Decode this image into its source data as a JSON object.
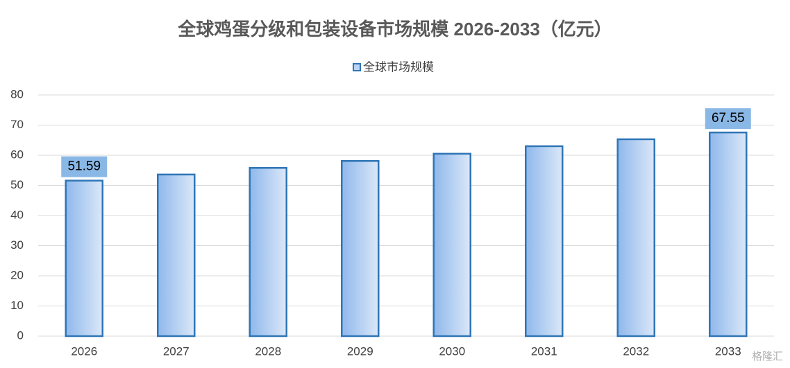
{
  "chart_data": {
    "type": "bar",
    "title": "全球鸡蛋分级和包装设备市场规模 2026-2033（亿元）",
    "categories": [
      "2026",
      "2027",
      "2028",
      "2029",
      "2030",
      "2031",
      "2032",
      "2033"
    ],
    "series": [
      {
        "name": "全球市场规模",
        "color": "#2e75b6",
        "values": [
          51.59,
          53.6,
          55.8,
          58.1,
          60.5,
          63.0,
          65.3,
          67.55
        ],
        "value_labels": [
          "51.59",
          null,
          null,
          null,
          null,
          null,
          null,
          "67.55"
        ]
      }
    ],
    "ylim": [
      0,
      80
    ],
    "yticks": [
      0,
      10,
      20,
      30,
      40,
      50,
      60,
      70,
      80
    ],
    "grid": true,
    "legend": "top",
    "watermark": "格隆汇"
  }
}
